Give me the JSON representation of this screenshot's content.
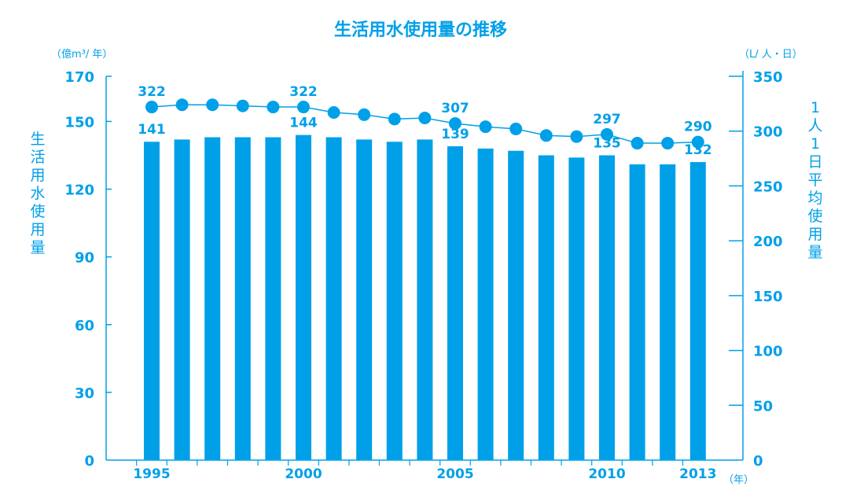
{
  "chart_data": {
    "type": "bar",
    "title": "生活用水使用量の推移",
    "left_axis": {
      "label": "生活用水使用量",
      "unit": "（億m³/ 年）",
      "ylim": [
        0,
        170
      ],
      "ticks": [
        0,
        30,
        60,
        90,
        120,
        150,
        170
      ]
    },
    "right_axis": {
      "label": "1人1日平均使用量",
      "unit": "（L/ 人・日）",
      "ylim": [
        0,
        350
      ],
      "ticks": [
        0,
        50,
        100,
        150,
        200,
        250,
        300,
        350
      ]
    },
    "x_unit": "（年）",
    "x_tick_labels": [
      "1995",
      "2000",
      "2005",
      "2010",
      "2013"
    ],
    "categories": [
      1995,
      1996,
      1997,
      1998,
      1999,
      2000,
      2001,
      2002,
      2003,
      2004,
      2005,
      2006,
      2007,
      2008,
      2009,
      2010,
      2011,
      2012,
      2013
    ],
    "series": [
      {
        "type": "bar",
        "axis": "left",
        "values": [
          141,
          142,
          143,
          143,
          143,
          144,
          143,
          142,
          141,
          142,
          139,
          138,
          137,
          135,
          134,
          135,
          131,
          131,
          132
        ],
        "labels": [
          {
            "x": 1995,
            "text": "141"
          },
          {
            "x": 2000,
            "text": "144"
          },
          {
            "x": 2005,
            "text": "139"
          },
          {
            "x": 2010,
            "text": "135"
          },
          {
            "x": 2013,
            "text": "132"
          }
        ]
      },
      {
        "type": "line",
        "axis": "right",
        "values": [
          322,
          324,
          324,
          323,
          322,
          322,
          317,
          315,
          311,
          312,
          307,
          304,
          302,
          296,
          295,
          297,
          289,
          289,
          290
        ],
        "labels": [
          {
            "x": 1995,
            "text": "322"
          },
          {
            "x": 2000,
            "text": "322"
          },
          {
            "x": 2005,
            "text": "307"
          },
          {
            "x": 2010,
            "text": "297"
          },
          {
            "x": 2013,
            "text": "290"
          }
        ]
      }
    ],
    "color": "#00a0e9"
  }
}
